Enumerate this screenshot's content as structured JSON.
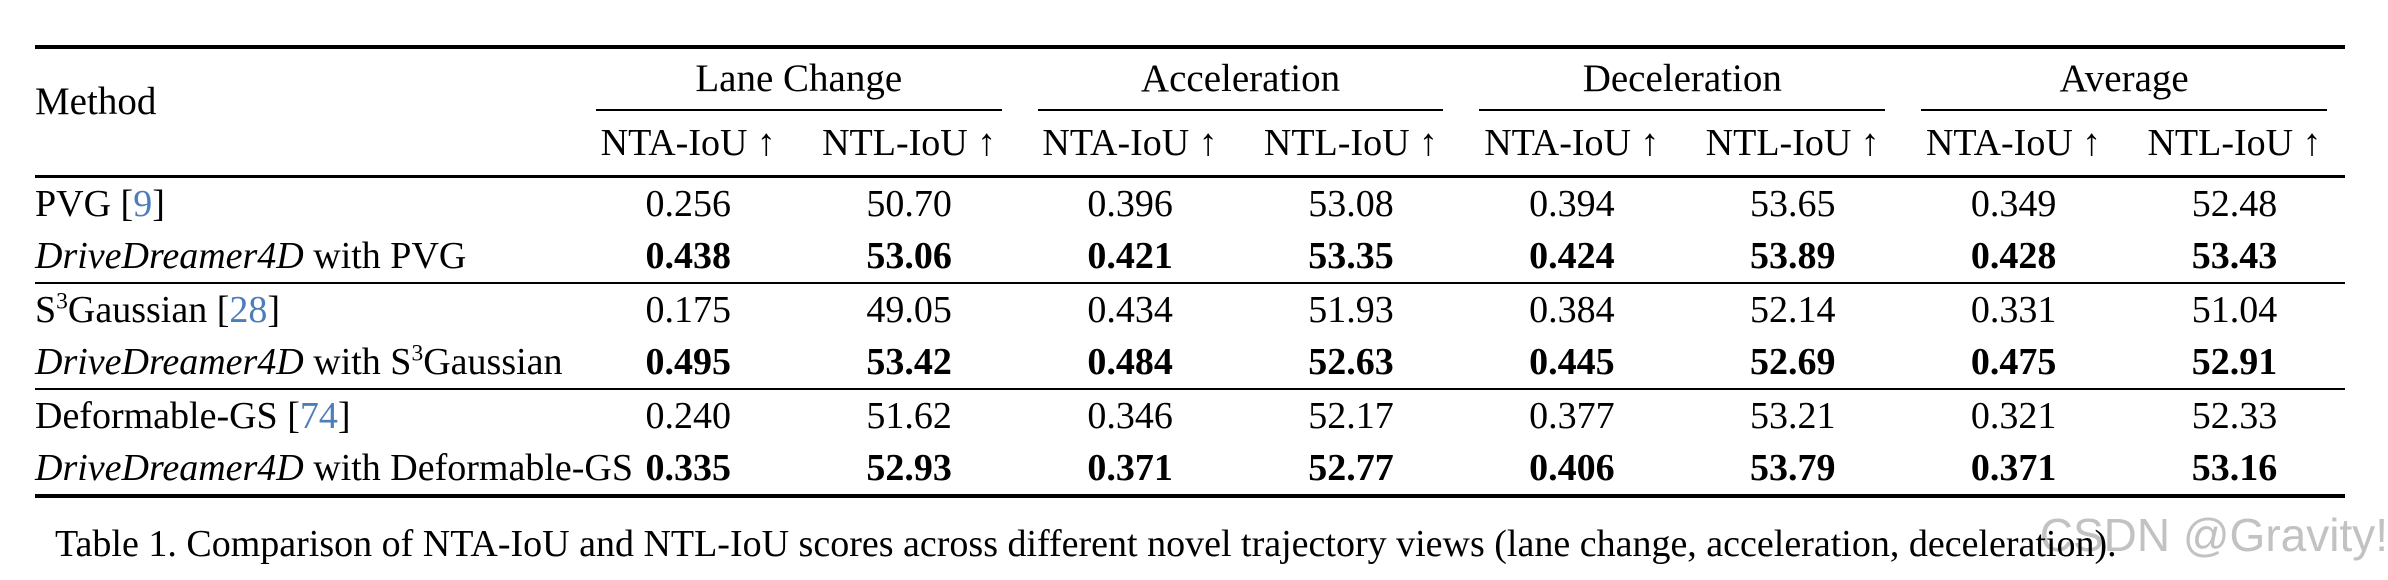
{
  "colors": {
    "citation_blue": "#4d7dbb",
    "rule_black": "#000000",
    "watermark_gray": "#c2c2c2"
  },
  "table": {
    "method_header": "Method",
    "groups": [
      {
        "label": "Lane Change"
      },
      {
        "label": "Acceleration"
      },
      {
        "label": "Deceleration"
      },
      {
        "label": "Average"
      }
    ],
    "subheaders": [
      "NTA-IoU ↑",
      "NTL-IoU ↑",
      "NTA-IoU ↑",
      "NTL-IoU ↑",
      "NTA-IoU ↑",
      "NTL-IoU ↑",
      "NTA-IoU ↑",
      "NTL-IoU ↑"
    ],
    "rows": [
      {
        "block_start": false,
        "bold": false,
        "method_parts": [
          {
            "t": "PVG ["
          },
          {
            "t": "9",
            "cite": true
          },
          {
            "t": "]"
          }
        ],
        "values": [
          "0.256",
          "50.70",
          "0.396",
          "53.08",
          "0.394",
          "53.65",
          "0.349",
          "52.48"
        ]
      },
      {
        "block_start": false,
        "bold": true,
        "method_parts": [
          {
            "t": "DriveDreamer4D",
            "italic": true
          },
          {
            "t": " with PVG"
          }
        ],
        "values": [
          "0.438",
          "53.06",
          "0.421",
          "53.35",
          "0.424",
          "53.89",
          "0.428",
          "53.43"
        ]
      },
      {
        "block_start": true,
        "bold": false,
        "method_parts": [
          {
            "t": "S"
          },
          {
            "t": "3",
            "sup": true
          },
          {
            "t": "Gaussian ["
          },
          {
            "t": "28",
            "cite": true
          },
          {
            "t": "]"
          }
        ],
        "values": [
          "0.175",
          "49.05",
          "0.434",
          "51.93",
          "0.384",
          "52.14",
          "0.331",
          "51.04"
        ]
      },
      {
        "block_start": false,
        "bold": true,
        "method_parts": [
          {
            "t": "DriveDreamer4D",
            "italic": true
          },
          {
            "t": " with S"
          },
          {
            "t": "3",
            "sup": true
          },
          {
            "t": "Gaussian"
          }
        ],
        "values": [
          "0.495",
          "53.42",
          "0.484",
          "52.63",
          "0.445",
          "52.69",
          "0.475",
          "52.91"
        ]
      },
      {
        "block_start": true,
        "bold": false,
        "method_parts": [
          {
            "t": "Deformable-GS ["
          },
          {
            "t": "74",
            "cite": true
          },
          {
            "t": "]"
          }
        ],
        "values": [
          "0.240",
          "51.62",
          "0.346",
          "52.17",
          "0.377",
          "53.21",
          "0.321",
          "52.33"
        ]
      },
      {
        "block_start": false,
        "bold": true,
        "method_parts": [
          {
            "t": "DriveDreamer4D",
            "italic": true
          },
          {
            "t": " with Deformable-GS"
          }
        ],
        "values": [
          "0.335",
          "52.93",
          "0.371",
          "52.77",
          "0.406",
          "53.79",
          "0.371",
          "53.16"
        ]
      }
    ]
  },
  "caption": "Table 1. Comparison of NTA-IoU and NTL-IoU scores across different novel trajectory views (lane change, acceleration, deceleration).",
  "watermark": "CSDN @Gravity!"
}
